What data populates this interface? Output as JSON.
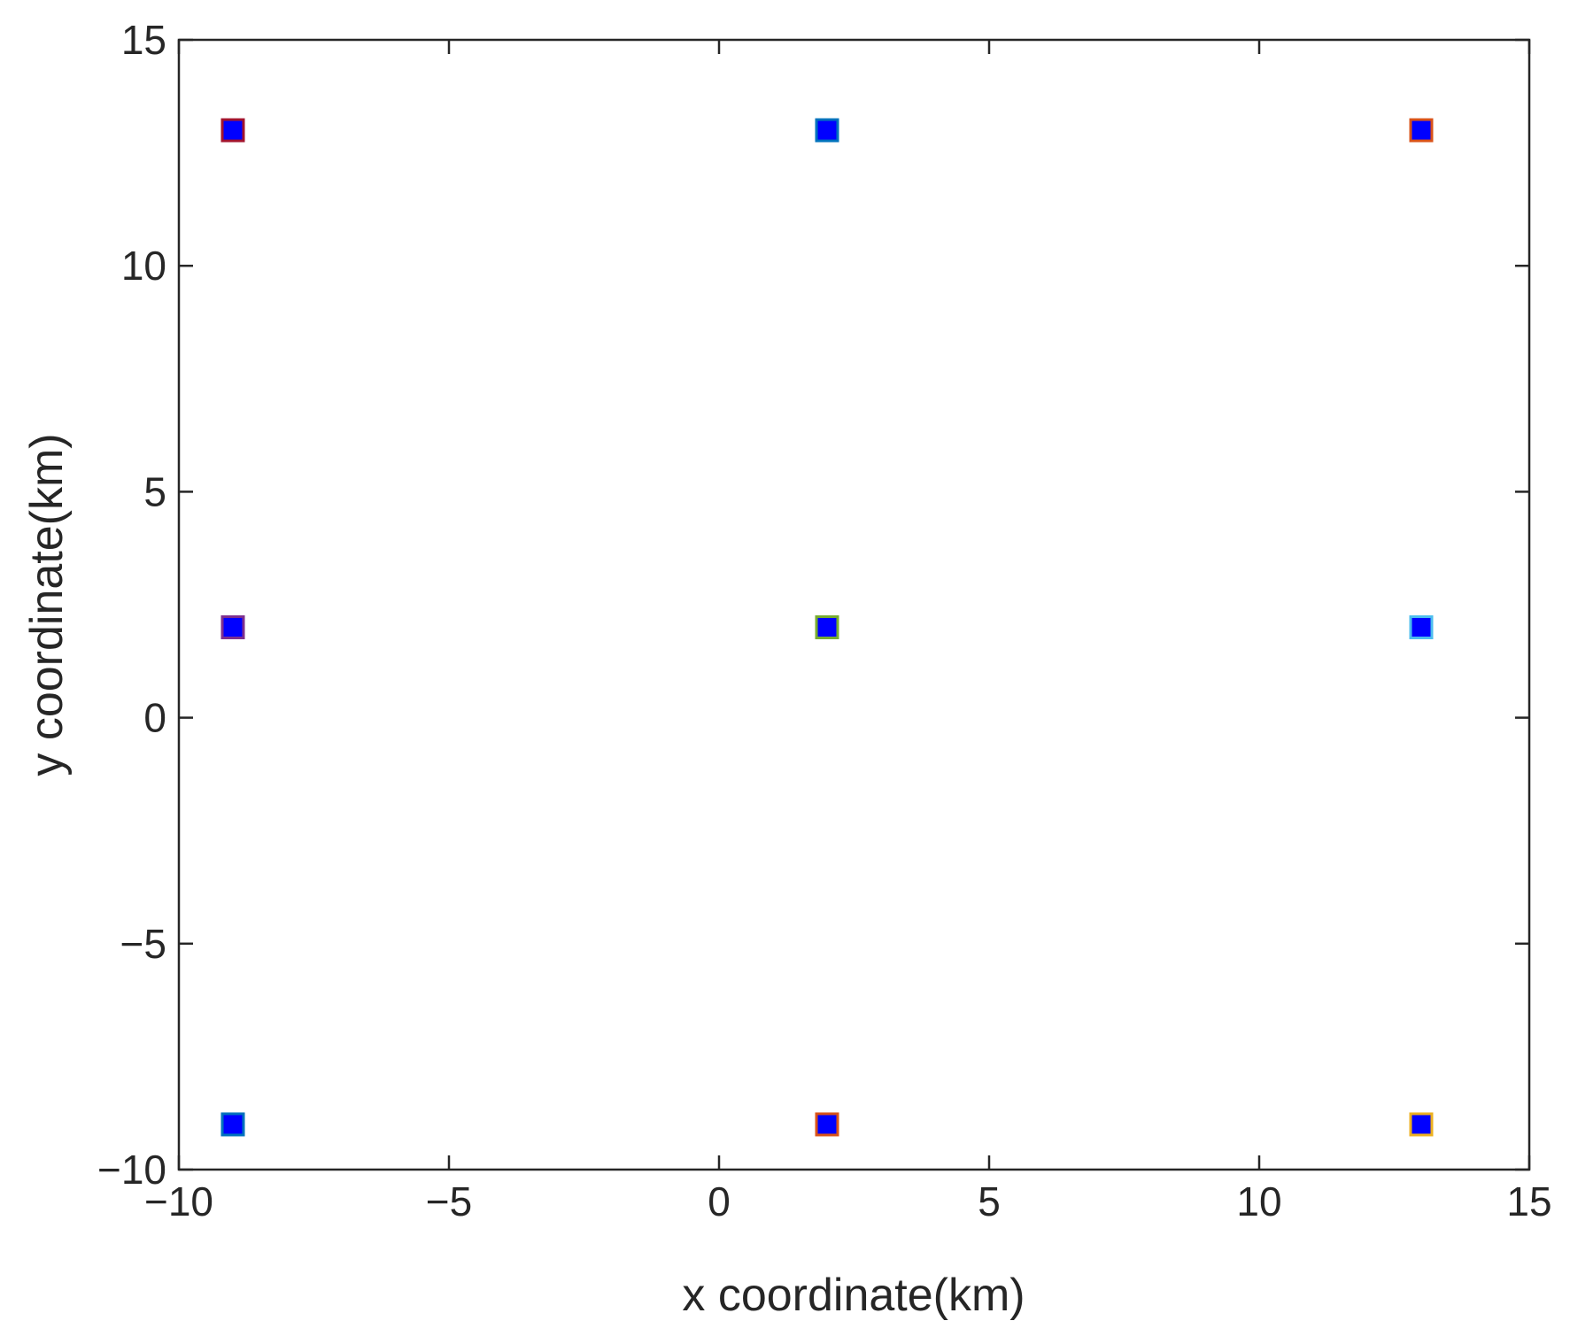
{
  "chart_data": {
    "type": "scatter",
    "x_label": "x coordinate(km)",
    "y_label": "y coordinate(km)",
    "x": [
      -9,
      2,
      13,
      -9,
      2,
      13,
      -9,
      2,
      13
    ],
    "values": [
      13,
      13,
      13,
      2,
      2,
      2,
      -9,
      -9,
      -9
    ],
    "color": "#0000ff",
    "edge_colors": [
      "#a2142f",
      "#0072bd",
      "#d95319",
      "#7e2f8e",
      "#77ac30",
      "#4dbeee",
      "#0072bd",
      "#d95319",
      "#edb120"
    ],
    "xlim": [
      -10,
      15
    ],
    "ylim": [
      -10,
      15
    ],
    "xticks": [
      {
        "value": -10,
        "label": "−10"
      },
      {
        "value": -5,
        "label": "−5"
      },
      0,
      5,
      10,
      15
    ],
    "yticks": [
      {
        "value": -10,
        "label": "−10"
      },
      {
        "value": -5,
        "label": "−5"
      },
      0,
      5,
      10,
      15
    ],
    "grid": false
  }
}
